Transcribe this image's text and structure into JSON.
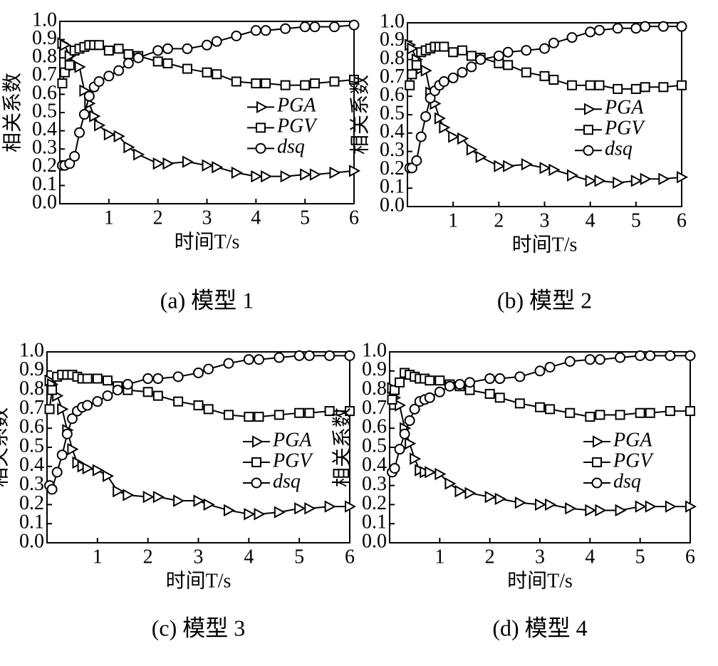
{
  "chart_data": [
    {
      "type": "line",
      "caption": "(a) 模型 1",
      "xlabel": "时间T/s",
      "ylabel": "相关系数",
      "xlim": [
        0,
        6
      ],
      "xticks": [
        1,
        2,
        3,
        4,
        5,
        6
      ],
      "ylim": [
        0,
        1
      ],
      "yticks": [
        {
          "value": 0,
          "label": "0.0"
        },
        0.1,
        0.2,
        0.3,
        0.4,
        0.5,
        0.6,
        0.7,
        0.8,
        0.9,
        {
          "value": 1,
          "label": "1.0"
        }
      ],
      "x": [
        0.05,
        0.1,
        0.2,
        0.3,
        0.4,
        0.5,
        0.6,
        0.7,
        0.8,
        1.0,
        1.2,
        1.4,
        1.6,
        2.0,
        2.2,
        2.6,
        3.0,
        3.2,
        3.6,
        4.0,
        4.2,
        4.6,
        5.0,
        5.2,
        5.6,
        6.0
      ],
      "series": [
        {
          "name": "PGA",
          "color": "#000000",
          "marker": "triangle",
          "values": [
            0.88,
            0.87,
            0.81,
            0.76,
            0.75,
            0.62,
            0.55,
            0.48,
            0.43,
            0.38,
            0.37,
            0.31,
            0.27,
            0.22,
            0.22,
            0.23,
            0.21,
            0.2,
            0.17,
            0.15,
            0.15,
            0.15,
            0.16,
            0.16,
            0.17,
            0.18
          ]
        },
        {
          "name": "PGV",
          "color": "#000000",
          "marker": "square",
          "values": [
            0.66,
            0.72,
            0.76,
            0.84,
            0.85,
            0.86,
            0.87,
            0.87,
            0.87,
            0.84,
            0.85,
            0.82,
            0.81,
            0.78,
            0.77,
            0.74,
            0.72,
            0.71,
            0.67,
            0.66,
            0.66,
            0.65,
            0.65,
            0.66,
            0.67,
            0.68
          ]
        },
        {
          "name": "dsq",
          "color": "#000000",
          "marker": "circle",
          "values": [
            0.21,
            0.21,
            0.22,
            0.26,
            0.39,
            0.49,
            0.59,
            0.64,
            0.67,
            0.7,
            0.73,
            0.77,
            0.8,
            0.84,
            0.85,
            0.85,
            0.87,
            0.89,
            0.92,
            0.95,
            0.95,
            0.96,
            0.97,
            0.97,
            0.97,
            0.98
          ]
        }
      ]
    },
    {
      "type": "line",
      "caption": "(b) 模型 2",
      "xlabel": "时间T/s",
      "ylabel": "相关系数",
      "xlim": [
        0,
        6
      ],
      "xticks": [
        1,
        2,
        3,
        4,
        5,
        6
      ],
      "ylim": [
        0,
        1
      ],
      "yticks": [
        {
          "value": 0,
          "label": "0.0"
        },
        0.1,
        0.2,
        0.3,
        0.4,
        0.5,
        0.6,
        0.7,
        0.8,
        0.9,
        {
          "value": 1,
          "label": "1.0"
        }
      ],
      "x": [
        0.05,
        0.1,
        0.2,
        0.3,
        0.4,
        0.5,
        0.6,
        0.7,
        0.8,
        1.0,
        1.2,
        1.4,
        1.6,
        2.0,
        2.2,
        2.6,
        3.0,
        3.2,
        3.6,
        4.0,
        4.2,
        4.6,
        5.0,
        5.2,
        5.6,
        6.0
      ],
      "series": [
        {
          "name": "PGA",
          "color": "#000000",
          "marker": "triangle",
          "values": [
            0.88,
            0.86,
            0.8,
            0.75,
            0.74,
            0.62,
            0.56,
            0.48,
            0.43,
            0.38,
            0.37,
            0.31,
            0.27,
            0.22,
            0.22,
            0.23,
            0.21,
            0.2,
            0.17,
            0.14,
            0.14,
            0.13,
            0.14,
            0.15,
            0.15,
            0.16
          ]
        },
        {
          "name": "PGV",
          "color": "#000000",
          "marker": "square",
          "values": [
            0.66,
            0.72,
            0.77,
            0.84,
            0.85,
            0.86,
            0.87,
            0.87,
            0.87,
            0.84,
            0.85,
            0.82,
            0.81,
            0.78,
            0.77,
            0.73,
            0.71,
            0.69,
            0.66,
            0.66,
            0.66,
            0.64,
            0.64,
            0.65,
            0.65,
            0.66
          ]
        },
        {
          "name": "dsq",
          "color": "#000000",
          "marker": "circle",
          "values": [
            0.21,
            0.21,
            0.25,
            0.38,
            0.49,
            0.59,
            0.63,
            0.66,
            0.68,
            0.7,
            0.73,
            0.76,
            0.8,
            0.82,
            0.84,
            0.85,
            0.86,
            0.89,
            0.92,
            0.95,
            0.96,
            0.97,
            0.97,
            0.98,
            0.98,
            0.98
          ]
        }
      ]
    },
    {
      "type": "line",
      "caption": "(c) 模型 3",
      "xlabel": "时间T/s",
      "ylabel": "相关系数",
      "xlim": [
        0,
        6
      ],
      "xticks": [
        1,
        2,
        3,
        4,
        5,
        6
      ],
      "ylim": [
        0,
        1
      ],
      "yticks": [
        {
          "value": 0,
          "label": "0.0"
        },
        0.1,
        0.2,
        0.3,
        0.4,
        0.5,
        0.6,
        0.7,
        0.8,
        0.9,
        {
          "value": 1,
          "label": "1.0"
        }
      ],
      "x": [
        0.05,
        0.1,
        0.2,
        0.3,
        0.4,
        0.5,
        0.6,
        0.7,
        0.8,
        1.0,
        1.2,
        1.4,
        1.6,
        2.0,
        2.2,
        2.6,
        3.0,
        3.2,
        3.6,
        4.0,
        4.2,
        4.6,
        5.0,
        5.2,
        5.6,
        6.0
      ],
      "series": [
        {
          "name": "PGA",
          "color": "#000000",
          "marker": "triangle",
          "values": [
            0.85,
            0.83,
            0.77,
            0.7,
            0.59,
            0.49,
            0.42,
            0.4,
            0.39,
            0.38,
            0.35,
            0.27,
            0.25,
            0.24,
            0.24,
            0.22,
            0.22,
            0.2,
            0.17,
            0.15,
            0.15,
            0.16,
            0.18,
            0.18,
            0.19,
            0.19
          ]
        },
        {
          "name": "PGV",
          "color": "#000000",
          "marker": "square",
          "values": [
            0.7,
            0.8,
            0.87,
            0.88,
            0.88,
            0.88,
            0.87,
            0.86,
            0.86,
            0.86,
            0.85,
            0.82,
            0.8,
            0.79,
            0.77,
            0.74,
            0.72,
            0.7,
            0.67,
            0.66,
            0.66,
            0.67,
            0.68,
            0.68,
            0.69,
            0.69
          ]
        },
        {
          "name": "dsq",
          "color": "#000000",
          "marker": "circle",
          "values": [
            0.3,
            0.28,
            0.37,
            0.46,
            0.57,
            0.65,
            0.69,
            0.71,
            0.72,
            0.74,
            0.77,
            0.8,
            0.83,
            0.86,
            0.86,
            0.87,
            0.89,
            0.91,
            0.94,
            0.96,
            0.96,
            0.97,
            0.98,
            0.98,
            0.98,
            0.98
          ]
        }
      ]
    },
    {
      "type": "line",
      "caption": "(d) 模型 4",
      "xlabel": "时间T/s",
      "ylabel": "相关系数",
      "xlim": [
        0,
        6
      ],
      "xticks": [
        1,
        2,
        3,
        4,
        5,
        6
      ],
      "ylim": [
        0,
        1
      ],
      "yticks": [
        {
          "value": 0,
          "label": "0.0"
        },
        0.1,
        0.2,
        0.3,
        0.4,
        0.5,
        0.6,
        0.7,
        0.8,
        0.9,
        {
          "value": 1,
          "label": "1.0"
        }
      ],
      "x": [
        0.05,
        0.1,
        0.2,
        0.3,
        0.4,
        0.5,
        0.6,
        0.7,
        0.8,
        1.0,
        1.2,
        1.4,
        1.6,
        2.0,
        2.2,
        2.6,
        3.0,
        3.2,
        3.6,
        4.0,
        4.2,
        4.6,
        5.0,
        5.2,
        5.6,
        6.0
      ],
      "series": [
        {
          "name": "PGA",
          "color": "#000000",
          "marker": "triangle",
          "values": [
            0.81,
            0.76,
            0.72,
            0.6,
            0.52,
            0.44,
            0.38,
            0.37,
            0.37,
            0.36,
            0.31,
            0.27,
            0.26,
            0.24,
            0.23,
            0.21,
            0.2,
            0.2,
            0.18,
            0.17,
            0.17,
            0.17,
            0.19,
            0.19,
            0.19,
            0.19
          ]
        },
        {
          "name": "PGV",
          "color": "#000000",
          "marker": "square",
          "values": [
            0.75,
            0.8,
            0.84,
            0.89,
            0.88,
            0.87,
            0.86,
            0.86,
            0.85,
            0.85,
            0.83,
            0.82,
            0.8,
            0.78,
            0.76,
            0.73,
            0.71,
            0.7,
            0.68,
            0.66,
            0.67,
            0.67,
            0.68,
            0.68,
            0.69,
            0.69
          ]
        },
        {
          "name": "dsq",
          "color": "#000000",
          "marker": "circle",
          "values": [
            0.37,
            0.39,
            0.49,
            0.57,
            0.64,
            0.7,
            0.74,
            0.75,
            0.76,
            0.79,
            0.82,
            0.83,
            0.84,
            0.86,
            0.86,
            0.87,
            0.9,
            0.92,
            0.95,
            0.96,
            0.96,
            0.97,
            0.98,
            0.98,
            0.98,
            0.98
          ]
        }
      ]
    }
  ]
}
